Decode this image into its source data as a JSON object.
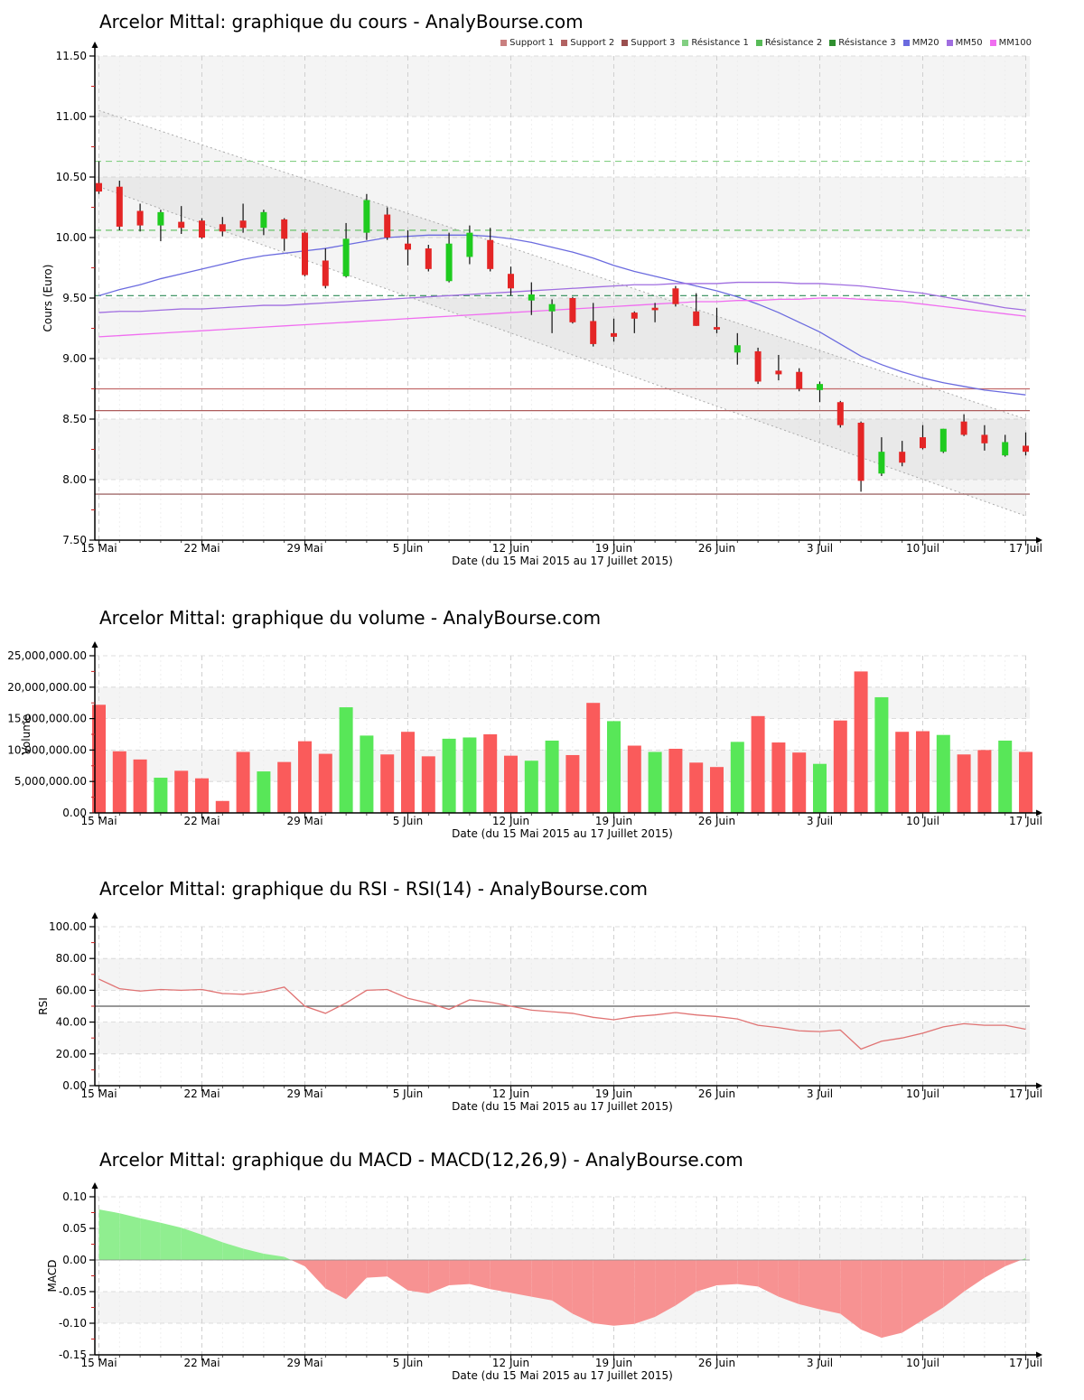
{
  "page": {
    "background": "#ffffff",
    "accent_red": "#e42525",
    "accent_green": "#1fcb1f"
  },
  "x_axis": {
    "tick_labels": [
      "15 Mai",
      "22 Mai",
      "29 Mai",
      "5 Juin",
      "12 Juin",
      "19 Juin",
      "26 Juin",
      "3 Juil",
      "10 Juil",
      "17 Juil"
    ],
    "tick_positions": [
      0,
      5,
      10,
      15,
      20,
      25,
      30,
      35,
      40,
      45
    ],
    "title": "Date (du 15 Mai 2015 au 17 Juillet 2015)"
  },
  "chart_data": [
    {
      "type": "candlestick",
      "title": "Arcelor Mittal: graphique du cours - AnalyBourse.com",
      "ylabel": "Cours (Euro)",
      "xlabel": "Date (du 15 Mai 2015 au 17 Juillet 2015)",
      "ylim": [
        7.5,
        11.5
      ],
      "y_tick_values": [
        7.5,
        8.0,
        8.5,
        9.0,
        9.5,
        10.0,
        10.5,
        11.0,
        11.5
      ],
      "y_tick_labels": [
        "7.50",
        "8.00",
        "8.50",
        "9.00",
        "9.50",
        "10.00",
        "10.50",
        "11.00",
        "11.50"
      ],
      "dates": [
        "15/05",
        "18/05",
        "19/05",
        "20/05",
        "21/05",
        "22/05",
        "25/05",
        "26/05",
        "27/05",
        "28/05",
        "29/05",
        "01/06",
        "02/06",
        "03/06",
        "04/06",
        "05/06",
        "08/06",
        "09/06",
        "10/06",
        "11/06",
        "12/06",
        "15/06",
        "16/06",
        "17/06",
        "18/06",
        "19/06",
        "22/06",
        "23/06",
        "24/06",
        "25/06",
        "26/06",
        "29/06",
        "30/06",
        "01/07",
        "02/07",
        "03/07",
        "06/07",
        "07/07",
        "08/07",
        "09/07",
        "10/07",
        "13/07",
        "14/07",
        "15/07",
        "16/07",
        "17/07"
      ],
      "open": [
        10.45,
        10.42,
        10.22,
        10.1,
        10.13,
        10.14,
        10.11,
        10.14,
        10.08,
        10.15,
        10.04,
        9.81,
        9.68,
        10.04,
        10.19,
        9.95,
        9.91,
        9.64,
        9.84,
        9.98,
        9.7,
        9.48,
        9.39,
        9.5,
        9.31,
        9.21,
        9.38,
        9.42,
        9.58,
        9.39,
        9.26,
        9.05,
        9.06,
        8.9,
        8.89,
        8.74,
        8.64,
        8.47,
        8.05,
        8.23,
        8.35,
        8.23,
        8.48,
        8.37,
        8.2,
        8.28
      ],
      "high": [
        10.63,
        10.47,
        10.28,
        10.23,
        10.26,
        10.16,
        10.17,
        10.28,
        10.23,
        10.16,
        10.05,
        9.91,
        10.12,
        10.36,
        10.25,
        10.06,
        9.94,
        10.04,
        10.1,
        10.08,
        9.76,
        9.63,
        9.49,
        9.51,
        9.46,
        9.33,
        9.39,
        9.46,
        9.6,
        9.54,
        9.42,
        9.21,
        9.09,
        9.03,
        8.92,
        8.81,
        8.65,
        8.48,
        8.35,
        8.32,
        8.45,
        8.42,
        8.54,
        8.45,
        8.37,
        8.39
      ],
      "low": [
        10.36,
        10.06,
        10.05,
        9.97,
        10.03,
        9.99,
        10.01,
        10.04,
        10.02,
        9.89,
        9.68,
        9.58,
        9.67,
        9.98,
        9.98,
        9.77,
        9.72,
        9.63,
        9.78,
        9.72,
        9.52,
        9.36,
        9.21,
        9.29,
        9.1,
        9.14,
        9.21,
        9.3,
        9.43,
        9.27,
        9.21,
        8.95,
        8.79,
        8.82,
        8.73,
        8.64,
        8.43,
        7.9,
        8.03,
        8.11,
        8.25,
        8.22,
        8.36,
        8.24,
        8.19,
        8.2
      ],
      "close": [
        10.38,
        10.09,
        10.1,
        10.21,
        10.08,
        10.0,
        10.05,
        10.08,
        10.21,
        9.99,
        9.69,
        9.6,
        9.99,
        10.31,
        10.0,
        9.9,
        9.74,
        9.95,
        10.04,
        9.74,
        9.58,
        9.53,
        9.45,
        9.3,
        9.12,
        9.18,
        9.33,
        9.4,
        9.45,
        9.27,
        9.24,
        9.11,
        8.81,
        8.87,
        8.75,
        8.79,
        8.45,
        7.99,
        8.23,
        8.14,
        8.26,
        8.42,
        8.37,
        8.3,
        8.31,
        8.23
      ],
      "candle_up_color": "#1fcb1f",
      "candle_down_color": "#e42525",
      "series": [
        {
          "name": "MM20",
          "color": "#6b6bdf",
          "values": [
            9.52,
            9.57,
            9.61,
            9.66,
            9.7,
            9.74,
            9.78,
            9.82,
            9.85,
            9.87,
            9.89,
            9.91,
            9.94,
            9.97,
            10.0,
            10.01,
            10.02,
            10.02,
            10.02,
            10.01,
            9.99,
            9.96,
            9.92,
            9.88,
            9.83,
            9.77,
            9.72,
            9.68,
            9.64,
            9.6,
            9.56,
            9.51,
            9.45,
            9.38,
            9.3,
            9.22,
            9.12,
            9.02,
            8.95,
            8.89,
            8.84,
            8.8,
            8.77,
            8.74,
            8.72,
            8.7
          ]
        },
        {
          "name": "MM50",
          "color": "#a06ee0",
          "values": [
            9.38,
            9.39,
            9.39,
            9.4,
            9.41,
            9.41,
            9.42,
            9.43,
            9.44,
            9.44,
            9.45,
            9.46,
            9.47,
            9.48,
            9.49,
            9.5,
            9.51,
            9.52,
            9.53,
            9.54,
            9.55,
            9.56,
            9.57,
            9.58,
            9.59,
            9.6,
            9.61,
            9.61,
            9.62,
            9.62,
            9.62,
            9.63,
            9.63,
            9.63,
            9.62,
            9.62,
            9.61,
            9.6,
            9.58,
            9.56,
            9.54,
            9.51,
            9.48,
            9.45,
            9.42,
            9.4
          ]
        },
        {
          "name": "MM100",
          "color": "#f06ef0",
          "values": [
            9.18,
            9.19,
            9.2,
            9.21,
            9.22,
            9.23,
            9.24,
            9.25,
            9.26,
            9.27,
            9.28,
            9.29,
            9.3,
            9.31,
            9.32,
            9.33,
            9.34,
            9.35,
            9.36,
            9.37,
            9.38,
            9.39,
            9.4,
            9.41,
            9.42,
            9.43,
            9.44,
            9.45,
            9.46,
            9.47,
            9.47,
            9.48,
            9.48,
            9.49,
            9.49,
            9.5,
            9.5,
            9.49,
            9.48,
            9.47,
            9.45,
            9.43,
            9.41,
            9.39,
            9.37,
            9.35
          ]
        }
      ],
      "h_lines": [
        {
          "name": "Résistance 1",
          "value": 10.63,
          "color": "#85d085",
          "style": "dashed"
        },
        {
          "name": "Résistance 2",
          "value": 10.06,
          "color": "#5cbd5c",
          "style": "dashed"
        },
        {
          "name": "Résistance 3",
          "value": 9.52,
          "color": "#2e8b57",
          "style": "dashed"
        },
        {
          "name": "Support 1",
          "value": 8.75,
          "color": "#c26b6b",
          "style": "solid"
        },
        {
          "name": "Support 2",
          "value": 8.57,
          "color": "#ad5c5c",
          "style": "solid"
        },
        {
          "name": "Support 3",
          "value": 7.88,
          "color": "#8e4a4a",
          "style": "solid"
        }
      ],
      "channel": {
        "upper_start": 11.05,
        "upper_end": 8.5,
        "lower_start": 10.42,
        "lower_end": 7.7
      },
      "legend": [
        {
          "label": "Support 1",
          "color": "#c97f7f"
        },
        {
          "label": "Support 2",
          "color": "#b26262"
        },
        {
          "label": "Support 3",
          "color": "#9a4f4f"
        },
        {
          "label": "Résistance 1",
          "color": "#82cf82"
        },
        {
          "label": "Résistance 2",
          "color": "#57bb57"
        },
        {
          "label": "Résistance 3",
          "color": "#2f8f2f"
        },
        {
          "label": "MM20",
          "color": "#6b6bdf"
        },
        {
          "label": "MM50",
          "color": "#a06ee0"
        },
        {
          "label": "MM100",
          "color": "#f06ef0"
        }
      ]
    },
    {
      "type": "bar",
      "title": "Arcelor Mittal: graphique du volume - AnalyBourse.com",
      "ylabel": "Volume",
      "xlabel": "Date (du 15 Mai 2015 au 17 Juillet 2015)",
      "ylim": [
        0,
        25000000
      ],
      "y_tick_values": [
        0,
        5000000,
        10000000,
        15000000,
        20000000,
        25000000
      ],
      "y_tick_labels": [
        "0.00",
        "5,000,000.00",
        "10,000,000.00",
        "15,000,000.00",
        "20,000,000.00",
        "25,000,000.00"
      ],
      "values": [
        17200000,
        9800000,
        8500000,
        5600000,
        6700000,
        5500000,
        1900000,
        9700000,
        6600000,
        8100000,
        11400000,
        9400000,
        16800000,
        12300000,
        9300000,
        12900000,
        9000000,
        11800000,
        12000000,
        12500000,
        9100000,
        8300000,
        11500000,
        9200000,
        17500000,
        14600000,
        10700000,
        9700000,
        10200000,
        8000000,
        7300000,
        11300000,
        15400000,
        11200000,
        9600000,
        7800000,
        14700000,
        22500000,
        18400000,
        12900000,
        13000000,
        12400000,
        9300000,
        10000000,
        11500000,
        9700000
      ],
      "directions": [
        "R",
        "R",
        "R",
        "G",
        "R",
        "R",
        "R",
        "R",
        "G",
        "R",
        "R",
        "R",
        "G",
        "G",
        "R",
        "R",
        "R",
        "G",
        "G",
        "R",
        "R",
        "G",
        "G",
        "R",
        "R",
        "G",
        "R",
        "G",
        "R",
        "R",
        "R",
        "G",
        "R",
        "R",
        "R",
        "G",
        "R",
        "R",
        "G",
        "R",
        "R",
        "G",
        "R",
        "R",
        "G",
        "R"
      ],
      "bar_colors": {
        "R": "#fa5b5b",
        "G": "#58e758"
      }
    },
    {
      "type": "line",
      "title": "Arcelor Mittal: graphique du RSI - RSI(14) - AnalyBourse.com",
      "ylabel": "RSI",
      "xlabel": "Date (du 15 Mai 2015 au 17 Juillet 2015)",
      "ylim": [
        0,
        100
      ],
      "y_tick_values": [
        0,
        20,
        40,
        60,
        80,
        100
      ],
      "y_tick_labels": [
        "0.00",
        "20.00",
        "40.00",
        "60.00",
        "80.00",
        "100.00"
      ],
      "line_color": "#e07373",
      "mid_line": {
        "value": 50,
        "color": "#5a5a5a"
      },
      "values": [
        67,
        61,
        59.5,
        60.5,
        60,
        60.5,
        58,
        57.5,
        59,
        62,
        50,
        45.5,
        52,
        60,
        60.5,
        55,
        52,
        48,
        54,
        52.5,
        50,
        47.5,
        46.5,
        45.5,
        43,
        41.5,
        43.5,
        44.5,
        46,
        44.5,
        43.5,
        42,
        38,
        36.5,
        34.5,
        34,
        35,
        23,
        28,
        30,
        33,
        37,
        39,
        38,
        38,
        35.5
      ]
    },
    {
      "type": "area",
      "title": "Arcelor Mittal: graphique du MACD - MACD(12,26,9) - AnalyBourse.com",
      "ylabel": "MACD",
      "xlabel": "Date (du 15 Mai 2015 au 17 Juillet 2015)",
      "ylim": [
        -0.15,
        0.1
      ],
      "y_tick_values": [
        -0.15,
        -0.1,
        -0.05,
        0,
        0.05,
        0.1
      ],
      "y_tick_labels": [
        "-0.15",
        "-0.10",
        "-0.05",
        "0.00",
        "0.05",
        "0.10"
      ],
      "positive_color": "#90ee90",
      "negative_color": "#f79292",
      "values": [
        0.08,
        0.074,
        0.066,
        0.059,
        0.051,
        0.04,
        0.028,
        0.018,
        0.01,
        0.005,
        -0.01,
        -0.045,
        -0.062,
        -0.028,
        -0.026,
        -0.048,
        -0.053,
        -0.04,
        -0.038,
        -0.046,
        -0.052,
        -0.058,
        -0.064,
        -0.085,
        -0.1,
        -0.104,
        -0.101,
        -0.09,
        -0.072,
        -0.05,
        -0.04,
        -0.038,
        -0.042,
        -0.058,
        -0.07,
        -0.078,
        -0.085,
        -0.11,
        -0.123,
        -0.115,
        -0.095,
        -0.075,
        -0.05,
        -0.028,
        -0.01,
        0.003
      ]
    }
  ]
}
